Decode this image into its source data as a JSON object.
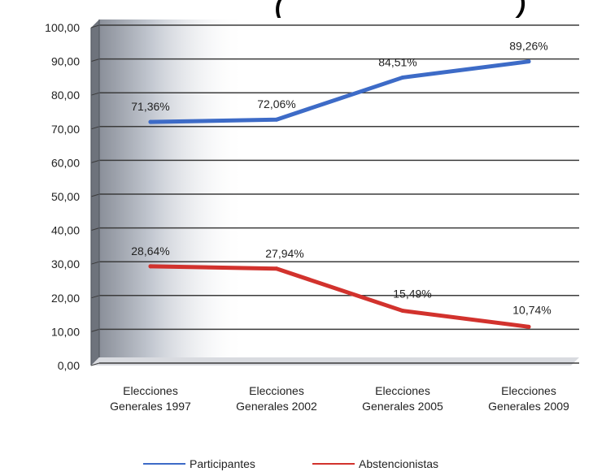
{
  "chart_data": {
    "type": "line",
    "title": "(",
    "title_tail": ")",
    "categories": [
      [
        "Elecciones",
        "Generales 1997"
      ],
      [
        "Elecciones",
        "Generales 2002"
      ],
      [
        "Elecciones",
        "Generales 2005"
      ],
      [
        "Elecciones",
        "Generales 2009"
      ]
    ],
    "y_ticks": [
      "0,00",
      "10,00",
      "20,00",
      "30,00",
      "40,00",
      "50,00",
      "60,00",
      "70,00",
      "80,00",
      "90,00",
      "100,00"
    ],
    "ylim": [
      0,
      100
    ],
    "grid": true,
    "legend_position": "bottom",
    "series": [
      {
        "name": "Participantes",
        "color": "#3d6bc7",
        "values": [
          71.36,
          72.06,
          84.51,
          89.26
        ],
        "labels": [
          "71,36%",
          "72,06%",
          "84,51%",
          "89,26%"
        ]
      },
      {
        "name": "Abstencionistas",
        "color": "#d2322d",
        "values": [
          28.64,
          27.94,
          15.49,
          10.74
        ],
        "labels": [
          "28,64%",
          "27,94%",
          "15,49%",
          "10,74%"
        ]
      }
    ]
  }
}
